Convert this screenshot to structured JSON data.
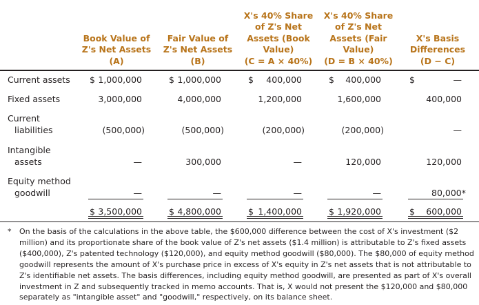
{
  "headers": {
    "col_a": [
      "Book Value of",
      "Z's Net Assets",
      "(A)"
    ],
    "col_b": [
      "Fair Value of",
      "Z's Net Assets",
      "(B)"
    ],
    "col_c": [
      "X's 40% Share",
      "of Z's Net",
      "Assets (Book",
      "Value)",
      "(C = A × 40%)"
    ],
    "col_d": [
      "X's 40% Share",
      "of Z's Net",
      "Assets (Fair",
      "Value)",
      "(D = B × 40%)"
    ],
    "col_e": [
      "X's Basis",
      "Differences",
      "(D − C)"
    ]
  },
  "rows": [
    {
      "label": [
        "Current assets"
      ],
      "a": {
        "dollar": "$",
        "value": "1,000,000"
      },
      "b": {
        "dollar": "$",
        "value": "1,000,000"
      },
      "c": {
        "dollar": "$",
        "value": "400,000"
      },
      "d": {
        "dollar": "$",
        "value": "400,000"
      },
      "e": {
        "dollar": "$",
        "value": "—"
      }
    },
    {
      "label": [
        "Fixed assets"
      ],
      "a": {
        "value": "3,000,000"
      },
      "b": {
        "value": "4,000,000"
      },
      "c": {
        "value": "1,200,000"
      },
      "d": {
        "value": "1,600,000"
      },
      "e": {
        "value": "400,000"
      }
    },
    {
      "label": [
        "Current",
        "liabilities"
      ],
      "a": {
        "value": "(500,000)"
      },
      "b": {
        "value": "(500,000)"
      },
      "c": {
        "value": "(200,000)"
      },
      "d": {
        "value": "(200,000)"
      },
      "e": {
        "value": "—"
      }
    },
    {
      "label": [
        "Intangible",
        "assets"
      ],
      "a": {
        "value": "—"
      },
      "b": {
        "value": "300,000"
      },
      "c": {
        "value": "—"
      },
      "d": {
        "value": "120,000"
      },
      "e": {
        "value": "120,000"
      }
    },
    {
      "label": [
        "Equity method",
        "goodwill"
      ],
      "a": {
        "value": "—"
      },
      "b": {
        "value": "—"
      },
      "c": {
        "value": "—"
      },
      "d": {
        "value": "—"
      },
      "e": {
        "value": "80,000*"
      }
    }
  ],
  "totals": {
    "a": {
      "dollar": "$",
      "value": "3,500,000"
    },
    "b": {
      "dollar": "$",
      "value": "4,800,000"
    },
    "c": {
      "dollar": "$",
      "value": "1,400,000"
    },
    "d": {
      "dollar": "$",
      "value": "1,920,000"
    },
    "e": {
      "dollar": "$",
      "value": "600,000"
    }
  },
  "footnote": {
    "mark": "*",
    "text": "On the basis of the calculations in the above table, the $600,000 difference between the cost of X's investment ($2 million) and its proportionate share of the book value of Z's net assets ($1.4 million) is attributable to Z's fixed assets ($400,000), Z's patented technology ($120,000), and equity method goodwill ($80,000). The $80,000 of equity method goodwill represents the amount of X's purchase price in excess of X's equity in Z's net assets that is not attributable to Z's identifiable net assets. The basis differences, including equity method goodwill, are presented as part of X's overall investment in Z and subsequently tracked in memo accounts. That is, X would not present the $120,000 and $80,000 separately as \"intangible asset\" and \"goodwill,\" respectively, on its balance sheet."
  },
  "colors": {
    "header_text": "#b8741a",
    "body_text": "#231f20"
  }
}
